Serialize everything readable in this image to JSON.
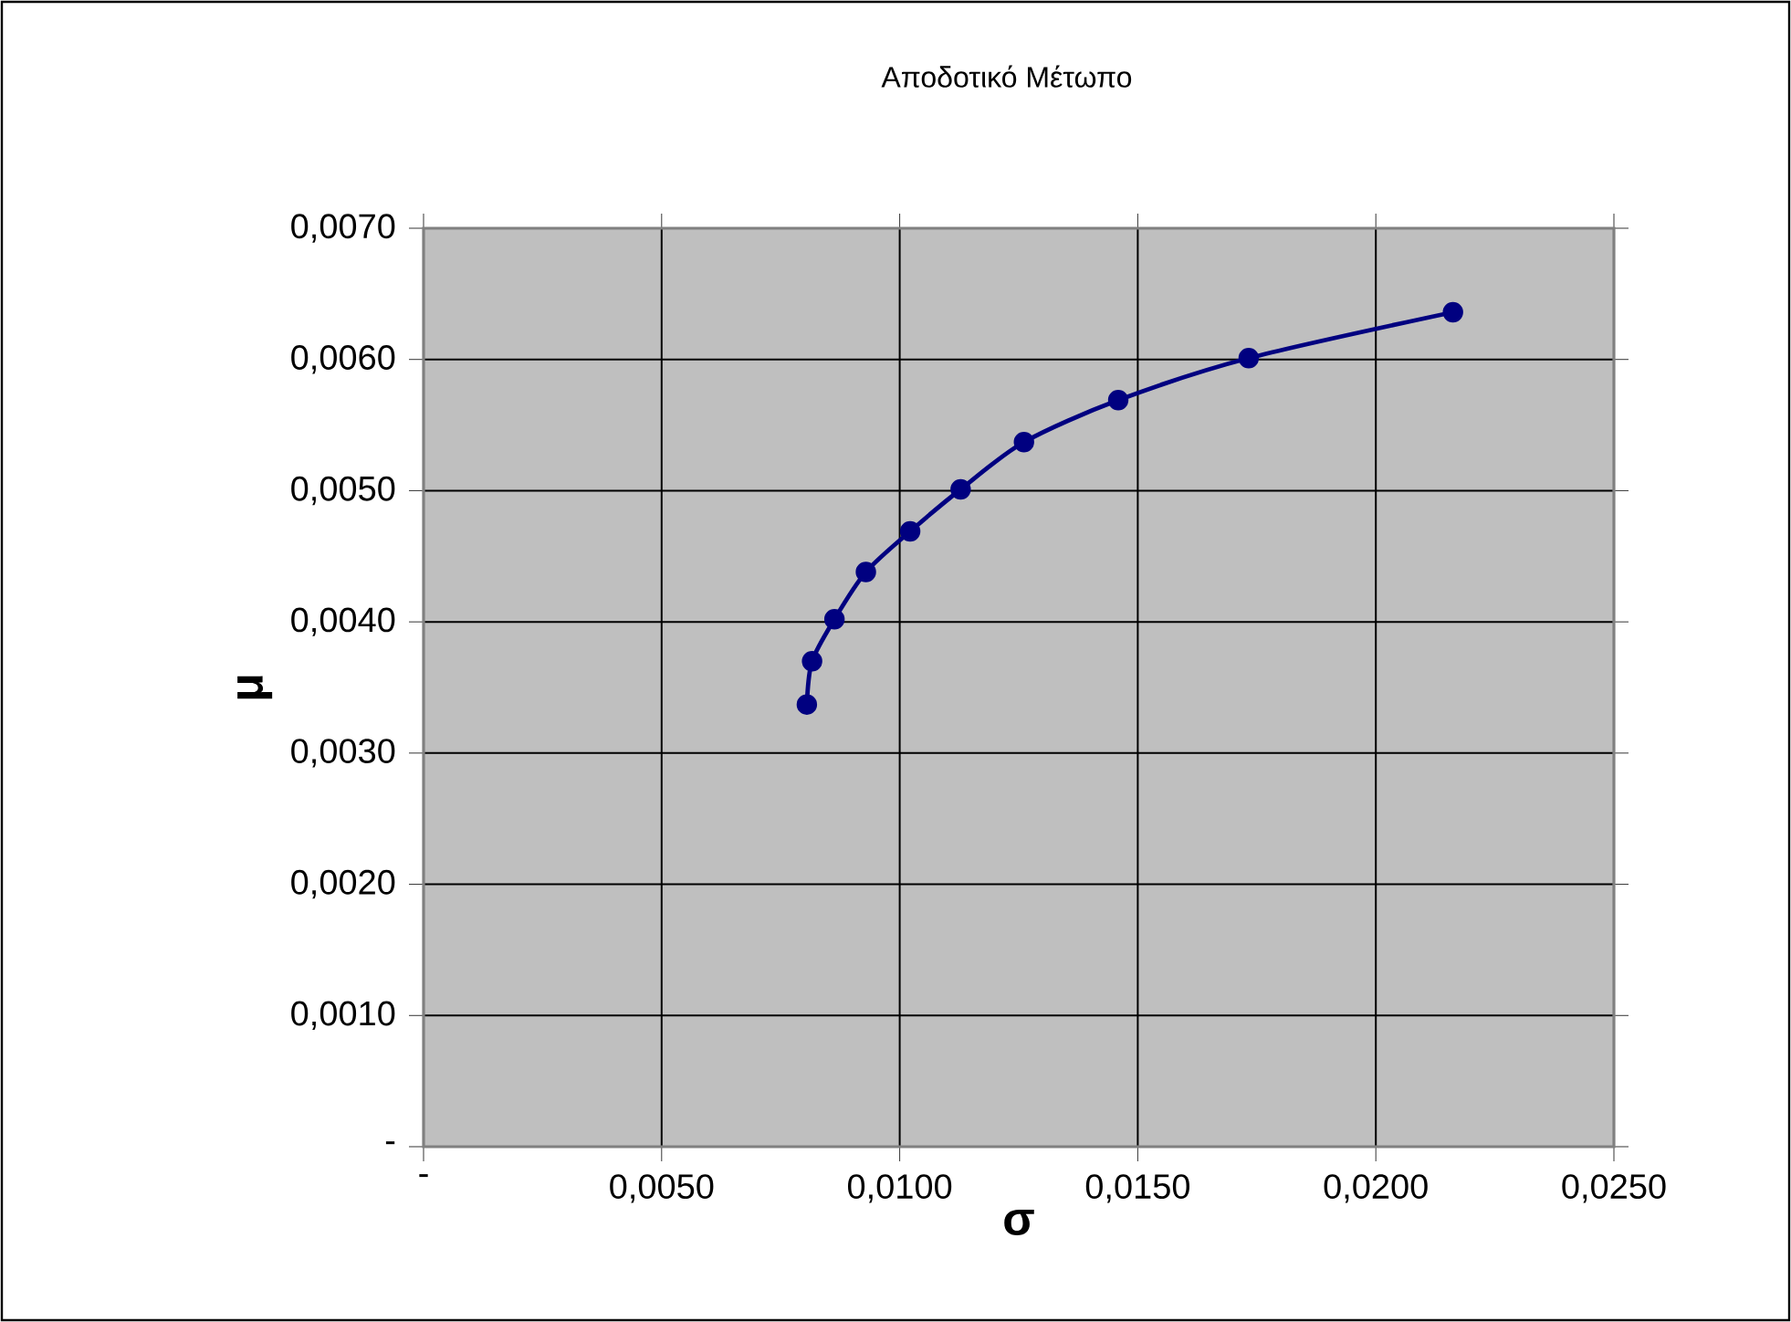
{
  "chart_data": {
    "type": "line",
    "title": "Αποδοτικό Μέτωπο",
    "xlabel": "σ",
    "ylabel": "μ",
    "x": [
      0.00805,
      0.00816,
      0.00863,
      0.00929,
      0.01022,
      0.01128,
      0.01261,
      0.01459,
      0.01733,
      0.02162
    ],
    "series": [
      {
        "color": "#000080",
        "values": [
          0.00337,
          0.0037,
          0.00402,
          0.00438,
          0.00469,
          0.00501,
          0.00537,
          0.00569,
          0.00601,
          0.00636
        ]
      }
    ],
    "xlim": [
      0,
      0.025
    ],
    "xticks": [
      {
        "value": 0,
        "label": "-"
      },
      {
        "value": 0.005,
        "label": "0,0050"
      },
      {
        "value": 0.01,
        "label": "0,0100"
      },
      {
        "value": 0.015,
        "label": "0,0150"
      },
      {
        "value": 0.02,
        "label": "0,0200"
      },
      {
        "value": 0.025,
        "label": "0,0250"
      }
    ],
    "ylim": [
      0,
      0.007
    ],
    "yticks": [
      {
        "value": 0,
        "label": "-"
      },
      {
        "value": 0.001,
        "label": "0,0010"
      },
      {
        "value": 0.002,
        "label": "0,0020"
      },
      {
        "value": 0.003,
        "label": "0,0030"
      },
      {
        "value": 0.004,
        "label": "0,0040"
      },
      {
        "value": 0.005,
        "label": "0,0050"
      },
      {
        "value": 0.006,
        "label": "0,0060"
      },
      {
        "value": 0.007,
        "label": "0,0070"
      }
    ],
    "grid": true,
    "marker": "circle"
  }
}
